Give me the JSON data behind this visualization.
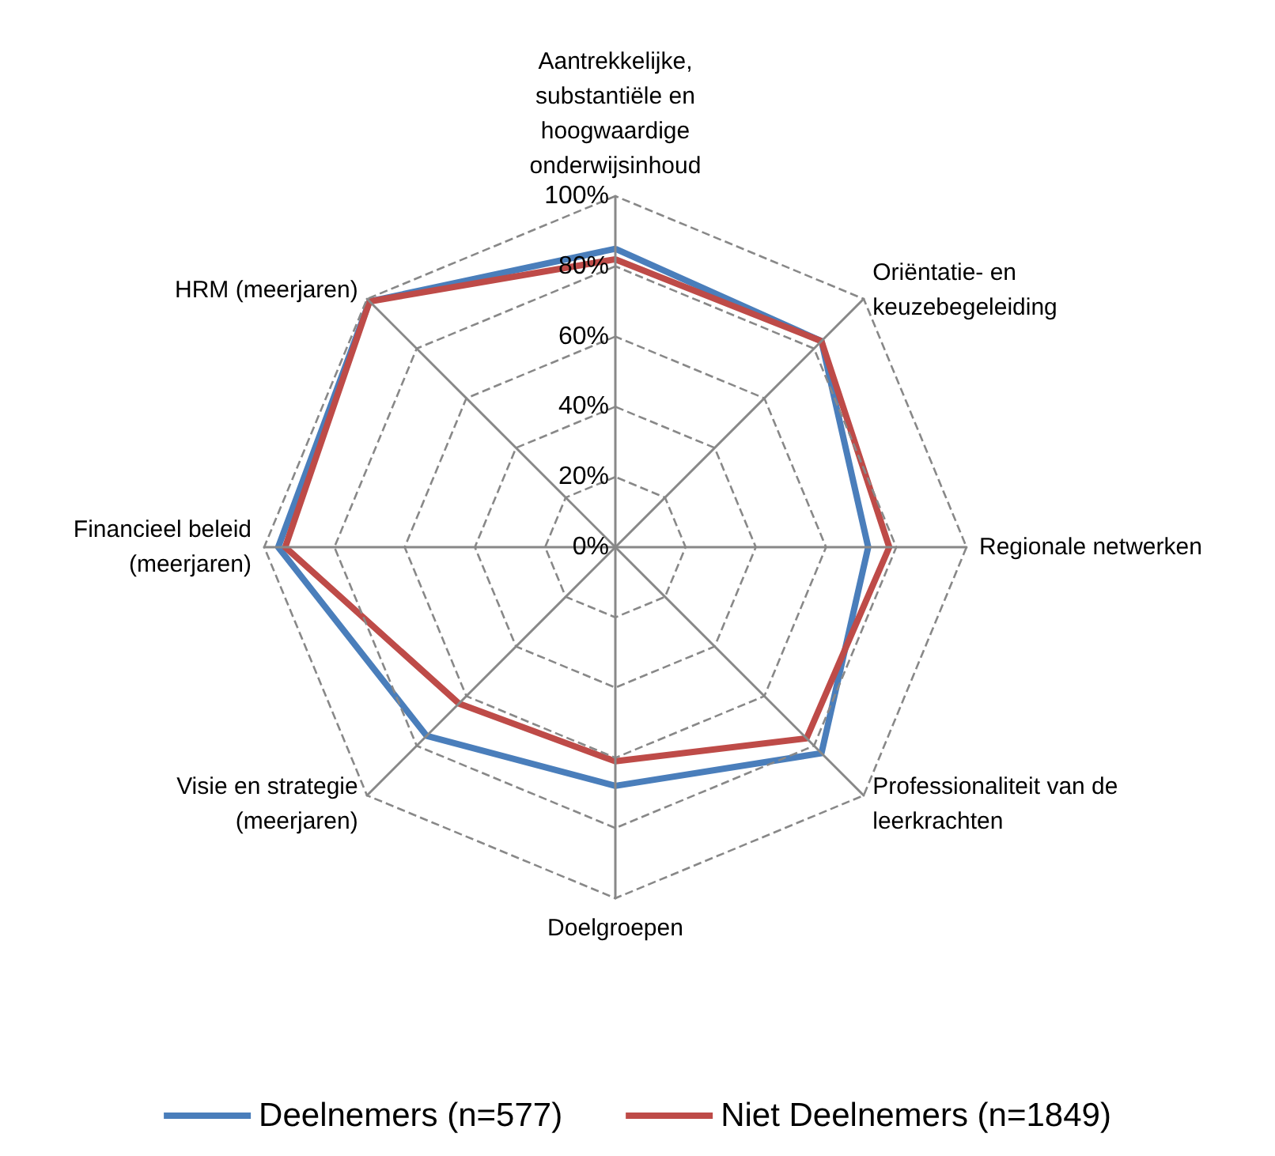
{
  "chart_data": {
    "type": "radar",
    "categories": [
      "Aantrekkelijke,\nsubstantiële en\nhoogwaardige\nonderwijsinhoud",
      "Oriëntatie- en\nkeuzebegeleiding",
      "Regionale netwerken",
      "Professionaliteit van de\nleerkrachten",
      "Doelgroepen",
      "Visie en strategie\n(meerjaren)",
      "Financieel beleid\n(meerjaren)",
      "HRM (meerjaren)"
    ],
    "series": [
      {
        "name": "Deelnemers (n=577)",
        "color": "#4a7ebb",
        "values": [
          85,
          83,
          72,
          83,
          68,
          76,
          96,
          99
        ]
      },
      {
        "name": "Niet Deelnemers (n=1849)",
        "color": "#be4b48",
        "values": [
          82,
          83,
          78,
          77,
          61,
          63,
          94,
          99
        ]
      }
    ],
    "ylim": [
      0,
      100
    ],
    "yticks": [
      {
        "value": 0,
        "label": "0%"
      },
      {
        "value": 20,
        "label": "20%"
      },
      {
        "value": 40,
        "label": "40%"
      },
      {
        "value": 60,
        "label": "60%"
      },
      {
        "value": 80,
        "label": "80%"
      },
      {
        "value": 100,
        "label": "100%"
      }
    ],
    "legend": "bottom",
    "marker": "none",
    "line_style": "solid",
    "grid": true
  }
}
